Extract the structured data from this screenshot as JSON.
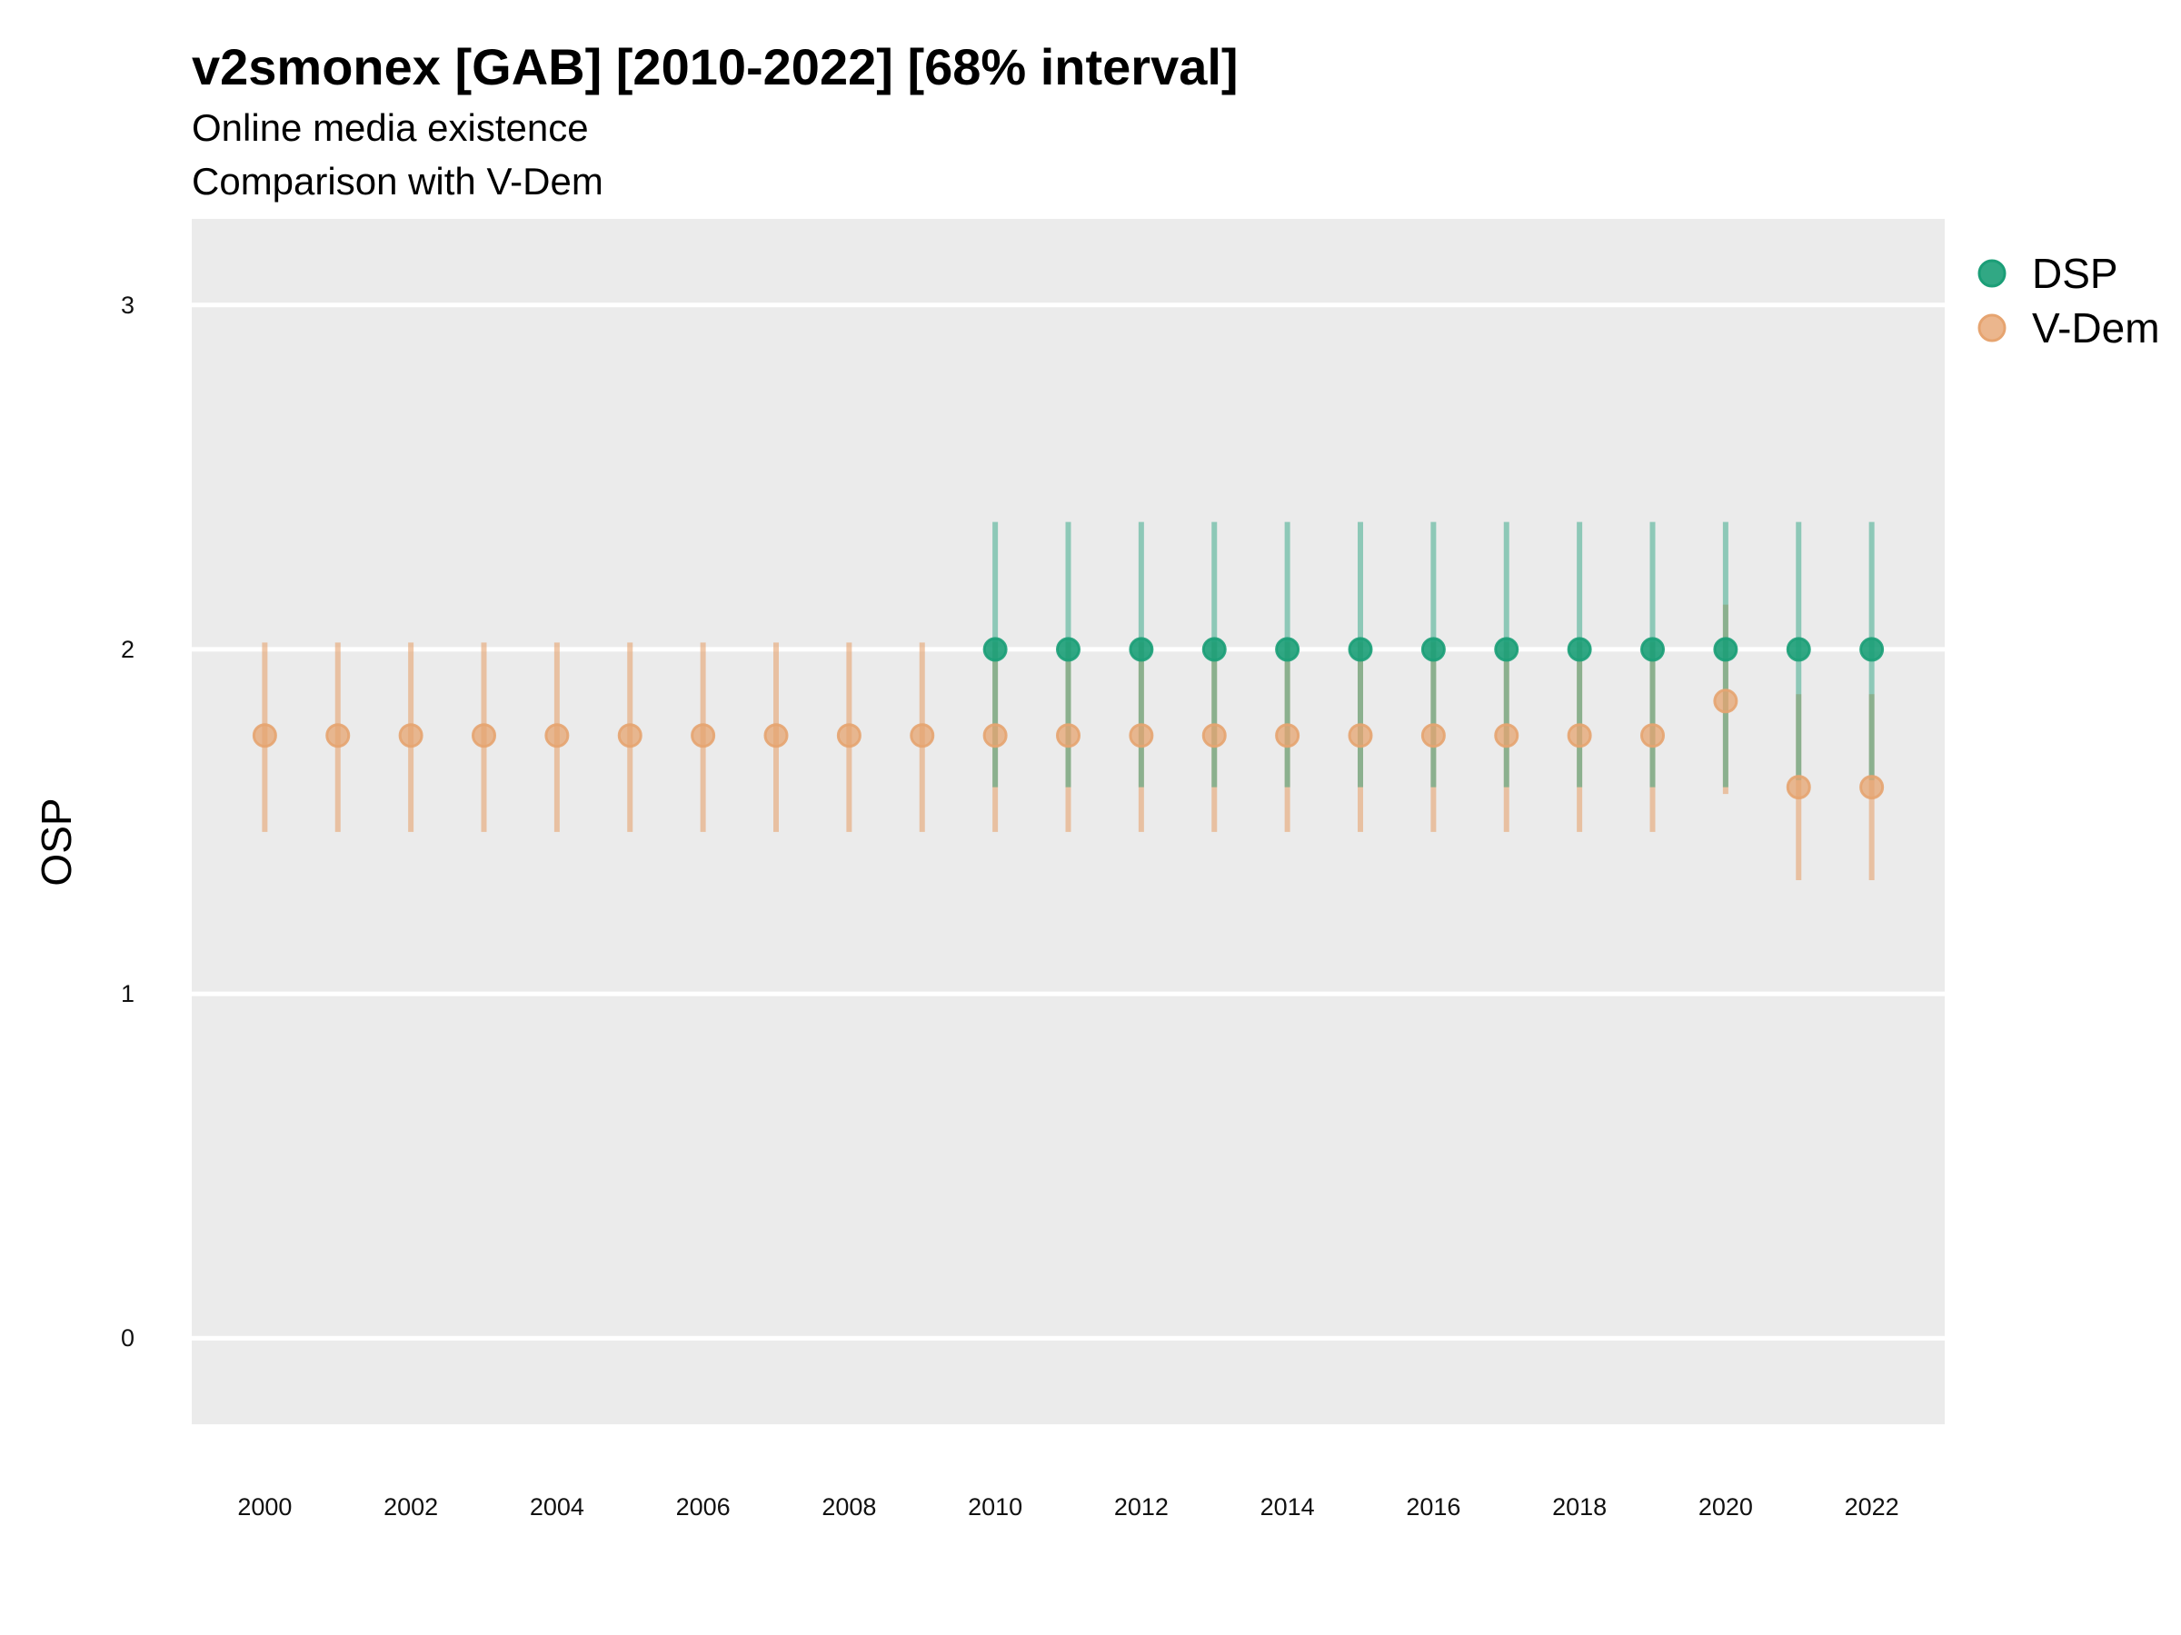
{
  "chart_data": {
    "type": "scatter",
    "title": "v2smonex [GAB] [2010-2022] [68% interval]",
    "subtitle_lines": [
      "Online media existence",
      "Comparison with V-Dem"
    ],
    "xlabel": "",
    "ylabel": "OSP",
    "xlim": [
      1999,
      2023
    ],
    "ylim": [
      -0.25,
      3.25
    ],
    "x_ticks": [
      2000,
      2002,
      2004,
      2006,
      2008,
      2010,
      2012,
      2014,
      2016,
      2018,
      2020,
      2022
    ],
    "x_tick_labels": [
      "2000",
      "2002",
      "2004",
      "2006",
      "2008",
      "2010",
      "2012",
      "2014",
      "2016",
      "2018",
      "2020",
      "2022"
    ],
    "y_ticks": [
      0,
      1,
      2,
      3
    ],
    "y_tick_labels": [
      "0",
      "1",
      "2",
      "3"
    ],
    "grid": true,
    "legend_position": "right",
    "series": [
      {
        "name": "DSP",
        "color": "#1b9e77",
        "x": [
          2010,
          2011,
          2012,
          2013,
          2014,
          2015,
          2016,
          2017,
          2018,
          2019,
          2020,
          2021,
          2022
        ],
        "y": [
          2,
          2,
          2,
          2,
          2,
          2,
          2,
          2,
          2,
          2,
          2,
          2,
          2
        ],
        "lower": [
          1.6,
          1.6,
          1.6,
          1.6,
          1.6,
          1.6,
          1.6,
          1.6,
          1.6,
          1.6,
          1.6,
          1.62,
          1.62
        ],
        "upper": [
          2.37,
          2.37,
          2.37,
          2.37,
          2.37,
          2.37,
          2.37,
          2.37,
          2.37,
          2.37,
          2.37,
          2.37,
          2.37
        ]
      },
      {
        "name": "V-Dem",
        "color": "#e6a470",
        "x": [
          2000,
          2001,
          2002,
          2003,
          2004,
          2005,
          2006,
          2007,
          2008,
          2009,
          2010,
          2011,
          2012,
          2013,
          2014,
          2015,
          2016,
          2017,
          2018,
          2019,
          2020,
          2021,
          2022
        ],
        "y": [
          1.75,
          1.75,
          1.75,
          1.75,
          1.75,
          1.75,
          1.75,
          1.75,
          1.75,
          1.75,
          1.75,
          1.75,
          1.75,
          1.75,
          1.75,
          1.75,
          1.75,
          1.75,
          1.75,
          1.75,
          1.85,
          1.6,
          1.6
        ],
        "lower": [
          1.47,
          1.47,
          1.47,
          1.47,
          1.47,
          1.47,
          1.47,
          1.47,
          1.47,
          1.47,
          1.47,
          1.47,
          1.47,
          1.47,
          1.47,
          1.47,
          1.47,
          1.47,
          1.47,
          1.47,
          1.58,
          1.33,
          1.33
        ],
        "upper": [
          2.02,
          2.02,
          2.02,
          2.02,
          2.02,
          2.02,
          2.02,
          2.02,
          2.02,
          2.02,
          2.02,
          2.02,
          2.02,
          2.02,
          2.02,
          2.02,
          2.02,
          2.02,
          2.02,
          2.02,
          2.13,
          1.87,
          1.87
        ]
      }
    ]
  }
}
